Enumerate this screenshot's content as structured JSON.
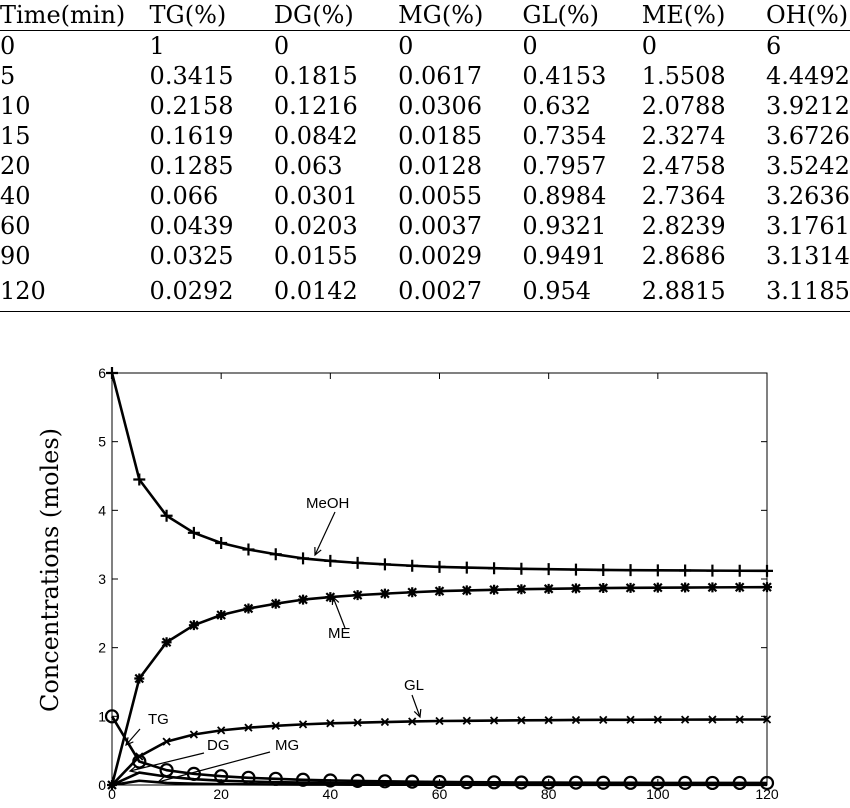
{
  "table": {
    "headers": [
      "Time(min)",
      "TG(%)",
      "DG(%)",
      "MG(%)",
      "GL(%)",
      "ME(%)",
      "OH(%)"
    ],
    "rows": [
      [
        "0",
        "1",
        "0",
        "0",
        "0",
        "0",
        "6"
      ],
      [
        "5",
        "0.3415",
        "0.1815",
        "0.0617",
        "0.4153",
        "1.5508",
        "4.4492"
      ],
      [
        "10",
        "0.2158",
        "0.1216",
        "0.0306",
        "0.632",
        "2.0788",
        "3.9212"
      ],
      [
        "15",
        "0.1619",
        "0.0842",
        "0.0185",
        "0.7354",
        "2.3274",
        "3.6726"
      ],
      [
        "20",
        "0.1285",
        "0.063",
        "0.0128",
        "0.7957",
        "2.4758",
        "3.5242"
      ],
      [
        "40",
        "0.066",
        "0.0301",
        "0.0055",
        "0.8984",
        "2.7364",
        "3.2636"
      ],
      [
        "60",
        "0.0439",
        "0.0203",
        "0.0037",
        "0.9321",
        "2.8239",
        "3.1761"
      ],
      [
        "90",
        "0.0325",
        "0.0155",
        "0.0029",
        "0.9491",
        "2.8686",
        "3.1314"
      ],
      [
        "120",
        "0.0292",
        "0.0142",
        "0.0027",
        "0.954",
        "2.8815",
        "3.1185"
      ]
    ]
  },
  "chart_data": {
    "type": "line",
    "title": "",
    "xlabel": "",
    "ylabel": "Concentrations (moles)",
    "xlim": [
      0,
      120
    ],
    "ylim": [
      0,
      6
    ],
    "xticks": [
      0,
      20,
      40,
      60,
      80,
      100,
      120
    ],
    "yticks": [
      0,
      1,
      2,
      3,
      4,
      5,
      6
    ],
    "grid": false,
    "x": [
      0,
      5,
      10,
      15,
      20,
      25,
      30,
      35,
      40,
      45,
      50,
      55,
      60,
      65,
      70,
      75,
      80,
      85,
      90,
      95,
      100,
      105,
      110,
      115,
      120
    ],
    "series": [
      {
        "name": "MeOH",
        "marker": "plus",
        "values": [
          6,
          4.4492,
          3.9212,
          3.6726,
          3.5242,
          3.43,
          3.36,
          3.3,
          3.2636,
          3.235,
          3.213,
          3.193,
          3.1761,
          3.166,
          3.157,
          3.149,
          3.143,
          3.137,
          3.1314,
          3.129,
          3.126,
          3.124,
          3.122,
          3.12,
          3.1185
        ]
      },
      {
        "name": "ME",
        "marker": "star",
        "values": [
          0,
          1.5508,
          2.0788,
          2.3274,
          2.4758,
          2.57,
          2.64,
          2.7,
          2.7364,
          2.765,
          2.787,
          2.807,
          2.8239,
          2.834,
          2.843,
          2.851,
          2.857,
          2.863,
          2.8686,
          2.871,
          2.874,
          2.876,
          2.878,
          2.88,
          2.8815
        ]
      },
      {
        "name": "GL",
        "marker": "x",
        "values": [
          0,
          0.4153,
          0.632,
          0.7354,
          0.7957,
          0.835,
          0.862,
          0.883,
          0.8984,
          0.908,
          0.917,
          0.925,
          0.9321,
          0.935,
          0.939,
          0.942,
          0.944,
          0.947,
          0.9491,
          0.95,
          0.951,
          0.952,
          0.953,
          0.954,
          0.954
        ]
      },
      {
        "name": "TG",
        "marker": "circle",
        "values": [
          1,
          0.3415,
          0.2158,
          0.1619,
          0.1285,
          0.105,
          0.09,
          0.076,
          0.066,
          0.06,
          0.054,
          0.049,
          0.0439,
          0.041,
          0.039,
          0.036,
          0.035,
          0.034,
          0.0325,
          0.032,
          0.031,
          0.031,
          0.03,
          0.03,
          0.0292
        ]
      },
      {
        "name": "DG",
        "marker": "none",
        "values": [
          0,
          0.1815,
          0.1216,
          0.0842,
          0.063,
          0.051,
          0.042,
          0.035,
          0.0301,
          0.027,
          0.024,
          0.022,
          0.0203,
          0.019,
          0.018,
          0.017,
          0.016,
          0.016,
          0.0155,
          0.015,
          0.015,
          0.015,
          0.014,
          0.014,
          0.0142
        ]
      },
      {
        "name": "MG",
        "marker": "none",
        "values": [
          0,
          0.0617,
          0.0306,
          0.0185,
          0.0128,
          0.01,
          0.008,
          0.0065,
          0.0055,
          0.005,
          0.0045,
          0.004,
          0.0037,
          0.0035,
          0.0033,
          0.0031,
          0.003,
          0.003,
          0.0029,
          0.0028,
          0.0028,
          0.0028,
          0.0027,
          0.0027,
          0.0027
        ]
      }
    ],
    "annotations": [
      "MeOH",
      "ME",
      "GL",
      "TG",
      "DG",
      "MG"
    ]
  }
}
